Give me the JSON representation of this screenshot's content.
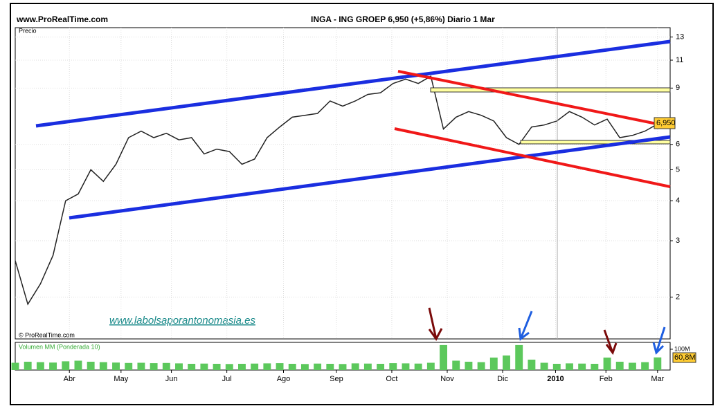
{
  "header": {
    "site": "www.ProRealTime.com",
    "title": "INGA - ING GROEP    6,950 (+5,86%)    Diario  1 Mar"
  },
  "chart_data": {
    "type": "line",
    "color": "#222222",
    "grid": true,
    "log_scale": true,
    "panel_label": "Precio",
    "copyright": "© ProRealTime.com",
    "annotation": "www.labolsaporantonomasia.es",
    "last_price_label": "6,950",
    "x": [
      0,
      1,
      2,
      3,
      4,
      5,
      6,
      7,
      8,
      9,
      10,
      11,
      12,
      13,
      14,
      15,
      16,
      17,
      18,
      19,
      20,
      21,
      22,
      23,
      24,
      25,
      26,
      27,
      28,
      29,
      30,
      31,
      32,
      33,
      34,
      35,
      36,
      37,
      38,
      39,
      40,
      41,
      42,
      43,
      44,
      45,
      46,
      47,
      48,
      49,
      50,
      51
    ],
    "values": [
      2.6,
      1.9,
      2.2,
      2.7,
      4.0,
      4.2,
      5.0,
      4.6,
      5.2,
      6.3,
      6.6,
      6.3,
      6.5,
      6.2,
      6.3,
      5.6,
      5.8,
      5.7,
      5.2,
      5.4,
      6.3,
      6.8,
      7.3,
      7.4,
      7.5,
      8.2,
      7.9,
      8.2,
      8.6,
      8.7,
      9.3,
      9.6,
      9.3,
      9.8,
      6.7,
      7.3,
      7.6,
      7.4,
      7.1,
      6.3,
      6.0,
      6.8,
      6.9,
      7.1,
      7.6,
      7.3,
      6.9,
      7.2,
      6.3,
      6.4,
      6.6,
      6.95
    ],
    "xlim": [
      0,
      52
    ],
    "xticks": [
      {
        "value": 4.3,
        "label": "Abr"
      },
      {
        "value": 8.4,
        "label": "May"
      },
      {
        "value": 12.4,
        "label": "Jun"
      },
      {
        "value": 16.8,
        "label": "Jul"
      },
      {
        "value": 21.3,
        "label": "Ago"
      },
      {
        "value": 25.5,
        "label": "Sep"
      },
      {
        "value": 29.9,
        "label": "Oct"
      },
      {
        "value": 34.3,
        "label": "Nov"
      },
      {
        "value": 38.7,
        "label": "Dic"
      },
      {
        "value": 42.9,
        "label": "2010"
      },
      {
        "value": 46.9,
        "label": "Feb"
      },
      {
        "value": 51,
        "label": "Mar"
      }
    ],
    "ylim": [
      1.48,
      13.9
    ],
    "yticks": [
      13,
      11,
      9,
      6,
      5,
      4,
      3,
      2
    ],
    "volume": {
      "label": "Volumen MM (Ponderada 10)",
      "color": "#5cc85c",
      "values": [
        35,
        40,
        38,
        36,
        42,
        45,
        40,
        38,
        36,
        34,
        35,
        33,
        34,
        32,
        30,
        31,
        30,
        29,
        30,
        31,
        32,
        33,
        30,
        29,
        31,
        30,
        29,
        32,
        31,
        30,
        33,
        32,
        31,
        35,
        120,
        45,
        40,
        38,
        60,
        70,
        120,
        50,
        35,
        30,
        32,
        31,
        30,
        60,
        40,
        35,
        38,
        60.8
      ],
      "ylim": [
        0,
        133
      ],
      "yticks": [
        {
          "value": 100,
          "label": "100M"
        }
      ],
      "last_label": "60,8M"
    }
  }
}
